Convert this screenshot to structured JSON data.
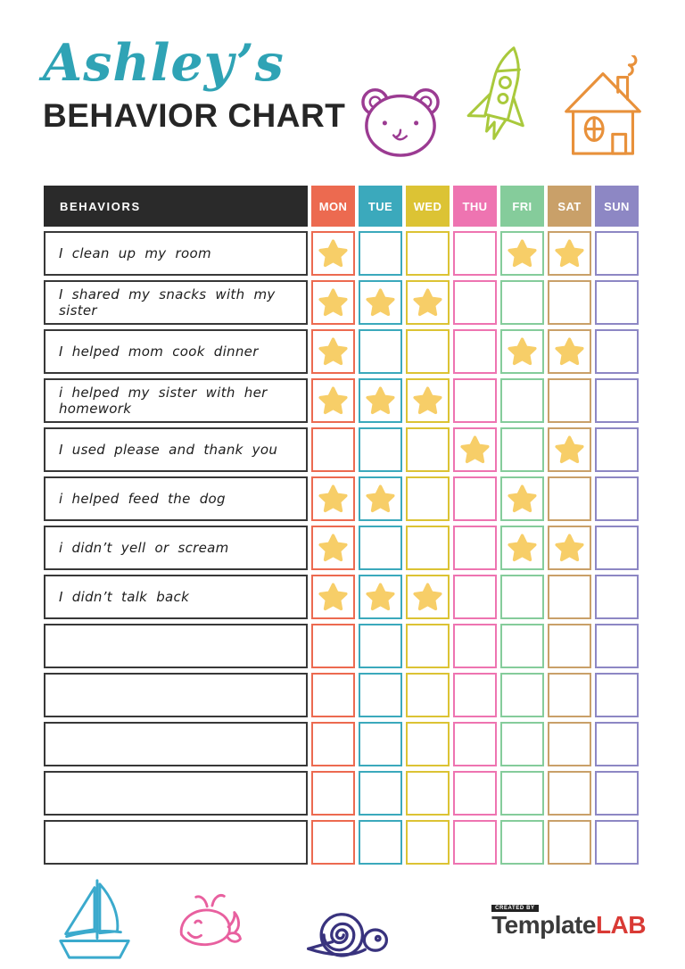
{
  "header": {
    "name_script": "Ashley’s",
    "title": "BEHAVIOR CHART"
  },
  "colors": {
    "script_name": "#2fa3b5",
    "title": "#262626",
    "header_bg": "#2a2a2a",
    "row_border": "#383838"
  },
  "icon_colors": {
    "bear-icon": "#9b3b92",
    "rocket-icon": "#a9c93c",
    "house-icon": "#e8913b",
    "sailboat-icon": "#3baacd",
    "whale-icon": "#e8609f",
    "snail-icon": "#39337e"
  },
  "table": {
    "behaviors_header": "BEHAVIORS",
    "header_bg": "#2a2a2a",
    "star_color": "#f7ce68",
    "days": [
      {
        "label": "MON",
        "color": "#ec6a50"
      },
      {
        "label": "TUE",
        "color": "#3ba9bc"
      },
      {
        "label": "WED",
        "color": "#dcc334"
      },
      {
        "label": "THU",
        "color": "#ee74b1"
      },
      {
        "label": "FRI",
        "color": "#85cc9b"
      },
      {
        "label": "SAT",
        "color": "#c9a069"
      },
      {
        "label": "SUN",
        "color": "#8d87c4"
      }
    ],
    "rows": [
      {
        "label": "I clean up my room",
        "stars": [
          true,
          false,
          false,
          false,
          true,
          true,
          false
        ]
      },
      {
        "label": "I shared my snacks with my sister",
        "stars": [
          true,
          true,
          true,
          false,
          false,
          false,
          false
        ]
      },
      {
        "label": "I helped mom cook dinner",
        "stars": [
          true,
          false,
          false,
          false,
          true,
          true,
          false
        ]
      },
      {
        "label": "i helped my sister with her homework",
        "stars": [
          true,
          true,
          true,
          false,
          false,
          false,
          false
        ]
      },
      {
        "label": "I used please and thank you",
        "stars": [
          false,
          false,
          false,
          true,
          false,
          true,
          false
        ]
      },
      {
        "label": "i helped feed the dog",
        "stars": [
          true,
          true,
          false,
          false,
          true,
          false,
          false
        ]
      },
      {
        "label": "i didn’t yell or scream",
        "stars": [
          true,
          false,
          false,
          false,
          true,
          true,
          false
        ]
      },
      {
        "label": "I didn’t talk back",
        "stars": [
          true,
          true,
          true,
          false,
          false,
          false,
          false
        ]
      },
      {
        "label": "",
        "stars": [
          false,
          false,
          false,
          false,
          false,
          false,
          false
        ]
      },
      {
        "label": "",
        "stars": [
          false,
          false,
          false,
          false,
          false,
          false,
          false
        ]
      },
      {
        "label": "",
        "stars": [
          false,
          false,
          false,
          false,
          false,
          false,
          false
        ]
      },
      {
        "label": "",
        "stars": [
          false,
          false,
          false,
          false,
          false,
          false,
          false
        ]
      },
      {
        "label": "",
        "stars": [
          false,
          false,
          false,
          false,
          false,
          false,
          false
        ]
      }
    ]
  },
  "footer": {
    "logo": {
      "created_by": "CREATED BY",
      "brand": "Template",
      "brand_accent": "LAB",
      "brand_color": "#3b3b3b",
      "accent_color": "#d93a35"
    }
  }
}
